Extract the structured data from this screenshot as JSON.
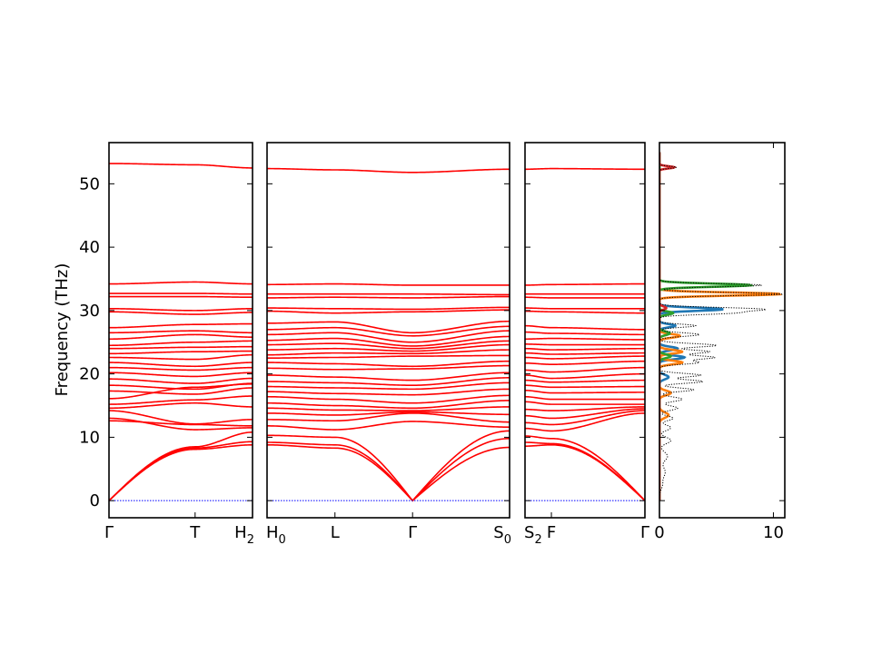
{
  "chart_data": {
    "type": "line",
    "ylabel": "Frequency (THz)",
    "ylim": [
      -2.7,
      56.5
    ],
    "yticks": [
      0,
      10,
      20,
      30,
      40,
      50
    ],
    "series_color": "#ff0000",
    "zero_line_color": "#0000ff",
    "panels": [
      {
        "id": "p1",
        "xticks": [
          {
            "base": "Γ",
            "sub": ""
          },
          {
            "base": "T",
            "sub": ""
          },
          {
            "base": "H",
            "sub": "2"
          }
        ],
        "xtick_positions": [
          0,
          0.6,
          1
        ],
        "optic_bands": [
          [
            53.2,
            53.0,
            52.5
          ],
          [
            34.2,
            34.5,
            34.2
          ],
          [
            32.7,
            32.7,
            32.6
          ],
          [
            32.2,
            32.2,
            32.1
          ],
          [
            30.3,
            30.0,
            30.3
          ],
          [
            29.8,
            29.4,
            29.7
          ],
          [
            27.3,
            27.8,
            27.9
          ],
          [
            26.5,
            26.8,
            26.5
          ],
          [
            25.5,
            26.2,
            25.8
          ],
          [
            24.5,
            25.0,
            25.2
          ],
          [
            24.0,
            24.2,
            24.3
          ],
          [
            23.2,
            23.5,
            23.6
          ],
          [
            22.6,
            22.3,
            23.0
          ],
          [
            21.8,
            21.2,
            21.8
          ],
          [
            21.0,
            20.6,
            21.0
          ],
          [
            20.2,
            19.6,
            20.2
          ],
          [
            19.2,
            18.5,
            19.3
          ],
          [
            18.2,
            17.6,
            18.5
          ],
          [
            17.3,
            16.8,
            17.8
          ],
          [
            16.1,
            17.9,
            18.4
          ],
          [
            15.2,
            15.9,
            16.5
          ],
          [
            14.6,
            15.4,
            14.8
          ],
          [
            14.2,
            12.1,
            12.8
          ],
          [
            13.0,
            11.2,
            11.5
          ],
          [
            12.6,
            12.0,
            11.8
          ]
        ],
        "acoustic_bands": [
          [
            0,
            8.5,
            10.8
          ],
          [
            0,
            8.3,
            9.3
          ],
          [
            0,
            8.1,
            8.8
          ]
        ]
      },
      {
        "id": "p2",
        "xticks": [
          {
            "base": "H",
            "sub": "0"
          },
          {
            "base": "L",
            "sub": ""
          },
          {
            "base": "Γ",
            "sub": ""
          },
          {
            "base": "S",
            "sub": "0"
          }
        ],
        "xtick_positions": [
          0,
          0.28,
          0.6,
          1
        ],
        "optic_bands": [
          [
            52.4,
            52.2,
            51.8,
            52.3
          ],
          [
            34.1,
            34.2,
            34.0,
            34.0
          ],
          [
            32.6,
            32.6,
            32.6,
            32.5
          ],
          [
            32.0,
            32.1,
            32.0,
            32.2
          ],
          [
            30.4,
            30.3,
            30.2,
            30.5
          ],
          [
            29.9,
            29.6,
            29.8,
            30.1
          ],
          [
            28.0,
            28.2,
            26.5,
            28.3
          ],
          [
            27.0,
            27.3,
            26.0,
            27.5
          ],
          [
            26.2,
            26.5,
            25.0,
            26.8
          ],
          [
            25.3,
            25.6,
            24.4,
            25.9
          ],
          [
            24.6,
            24.8,
            24.0,
            25.2
          ],
          [
            23.8,
            24.0,
            23.6,
            24.6
          ],
          [
            23.0,
            23.3,
            23.2,
            23.8
          ],
          [
            22.5,
            22.6,
            22.8,
            22.9
          ],
          [
            21.8,
            21.6,
            21.2,
            22.0
          ],
          [
            20.9,
            20.7,
            20.8,
            21.3
          ],
          [
            19.8,
            19.5,
            19.0,
            20.2
          ],
          [
            18.8,
            18.6,
            18.2,
            19.4
          ],
          [
            18.0,
            17.8,
            17.6,
            18.6
          ],
          [
            17.2,
            16.9,
            16.7,
            17.6
          ],
          [
            16.4,
            16.0,
            15.4,
            16.6
          ],
          [
            15.4,
            15.0,
            14.6,
            15.8
          ],
          [
            14.6,
            14.3,
            14.2,
            14.8
          ],
          [
            13.8,
            13.5,
            14.0,
            13.6
          ],
          [
            12.8,
            12.6,
            13.8,
            12.4
          ],
          [
            11.8,
            11.2,
            12.5,
            11.6
          ]
        ],
        "acoustic_bands": [
          [
            10.3,
            10.0,
            0,
            11.0
          ],
          [
            9.2,
            8.8,
            0,
            9.8
          ],
          [
            8.8,
            8.3,
            0,
            8.4
          ]
        ]
      },
      {
        "id": "p3",
        "xticks": [
          {
            "base": "S",
            "sub": "2"
          },
          {
            "base": "F",
            "sub": ""
          },
          {
            "base": "Γ",
            "sub": ""
          }
        ],
        "xtick_positions": [
          0,
          0.22,
          1
        ],
        "optic_bands": [
          [
            52.3,
            52.4,
            52.3
          ],
          [
            34.0,
            34.1,
            34.2
          ],
          [
            32.6,
            32.6,
            32.6
          ],
          [
            32.1,
            32.0,
            32.0
          ],
          [
            30.4,
            30.3,
            30.3
          ],
          [
            29.9,
            29.8,
            29.6
          ],
          [
            27.6,
            27.3,
            27.0
          ],
          [
            26.6,
            26.4,
            26.2
          ],
          [
            25.5,
            25.6,
            25.4
          ],
          [
            24.7,
            24.6,
            24.6
          ],
          [
            24.0,
            23.8,
            24.0
          ],
          [
            23.3,
            23.1,
            23.3
          ],
          [
            22.6,
            22.4,
            22.8
          ],
          [
            21.7,
            21.5,
            22.0
          ],
          [
            20.6,
            20.3,
            21.0
          ],
          [
            19.8,
            19.3,
            20.0
          ],
          [
            19.0,
            18.7,
            19.0
          ],
          [
            18.2,
            17.9,
            18.0
          ],
          [
            17.4,
            17.0,
            17.1
          ],
          [
            16.4,
            16.0,
            16.0
          ],
          [
            15.6,
            15.2,
            15.2
          ],
          [
            14.4,
            14.2,
            14.8
          ],
          [
            13.4,
            13.0,
            14.5
          ],
          [
            12.3,
            12.0,
            14.2
          ],
          [
            11.4,
            11.0,
            13.8
          ]
        ],
        "acoustic_bands": [
          [
            10.2,
            9.8,
            0
          ],
          [
            9.2,
            9.0,
            0
          ],
          [
            8.6,
            8.8,
            0
          ]
        ]
      }
    ],
    "dos": {
      "xlim": [
        0,
        11
      ],
      "xticks": [
        0,
        10
      ],
      "total_color": "#000000",
      "colors": [
        "#1f77b4",
        "#ff7f0e",
        "#2ca02c",
        "#d62728"
      ],
      "total_peaks": [
        [
          52.6,
          1.5,
          0.25
        ],
        [
          34.0,
          9.0,
          0.35
        ],
        [
          32.6,
          10.8,
          0.35
        ],
        [
          30.2,
          9.0,
          0.4
        ],
        [
          29.6,
          5.8,
          0.35
        ],
        [
          27.6,
          3.2,
          0.35
        ],
        [
          26.2,
          3.5,
          0.4
        ],
        [
          24.5,
          5.0,
          0.4
        ],
        [
          23.5,
          4.4,
          0.4
        ],
        [
          22.6,
          4.8,
          0.4
        ],
        [
          21.8,
          3.4,
          0.4
        ],
        [
          19.8,
          3.6,
          0.4
        ],
        [
          18.8,
          3.8,
          0.4
        ],
        [
          17.5,
          3.0,
          0.4
        ],
        [
          16.0,
          2.0,
          0.5
        ],
        [
          14.6,
          1.6,
          0.5
        ],
        [
          13.0,
          1.2,
          0.5
        ],
        [
          11.5,
          1.0,
          0.6
        ],
        [
          9.5,
          1.0,
          0.7
        ],
        [
          7.0,
          0.7,
          1.0
        ],
        [
          4.5,
          0.5,
          1.2
        ],
        [
          2.5,
          0.25,
          1.0
        ]
      ],
      "partial_peaks": [
        [
          [
            30.2,
            5.6,
            0.35
          ],
          [
            27.6,
            1.4,
            0.35
          ],
          [
            24.0,
            1.6,
            0.4
          ],
          [
            22.6,
            2.2,
            0.4
          ],
          [
            19.5,
            0.8,
            0.5
          ]
        ],
        [
          [
            32.6,
            10.6,
            0.35
          ],
          [
            26.0,
            1.8,
            0.4
          ],
          [
            23.5,
            2.0,
            0.4
          ],
          [
            21.8,
            2.0,
            0.4
          ],
          [
            17.0,
            1.0,
            0.5
          ],
          [
            13.5,
            0.8,
            0.6
          ]
        ],
        [
          [
            34.0,
            8.0,
            0.35
          ],
          [
            29.6,
            1.2,
            0.35
          ],
          [
            26.4,
            0.9,
            0.4
          ],
          [
            22.8,
            1.0,
            0.4
          ]
        ],
        [
          [
            52.6,
            1.3,
            0.25
          ],
          [
            30.4,
            0.6,
            0.35
          ]
        ]
      ]
    }
  }
}
